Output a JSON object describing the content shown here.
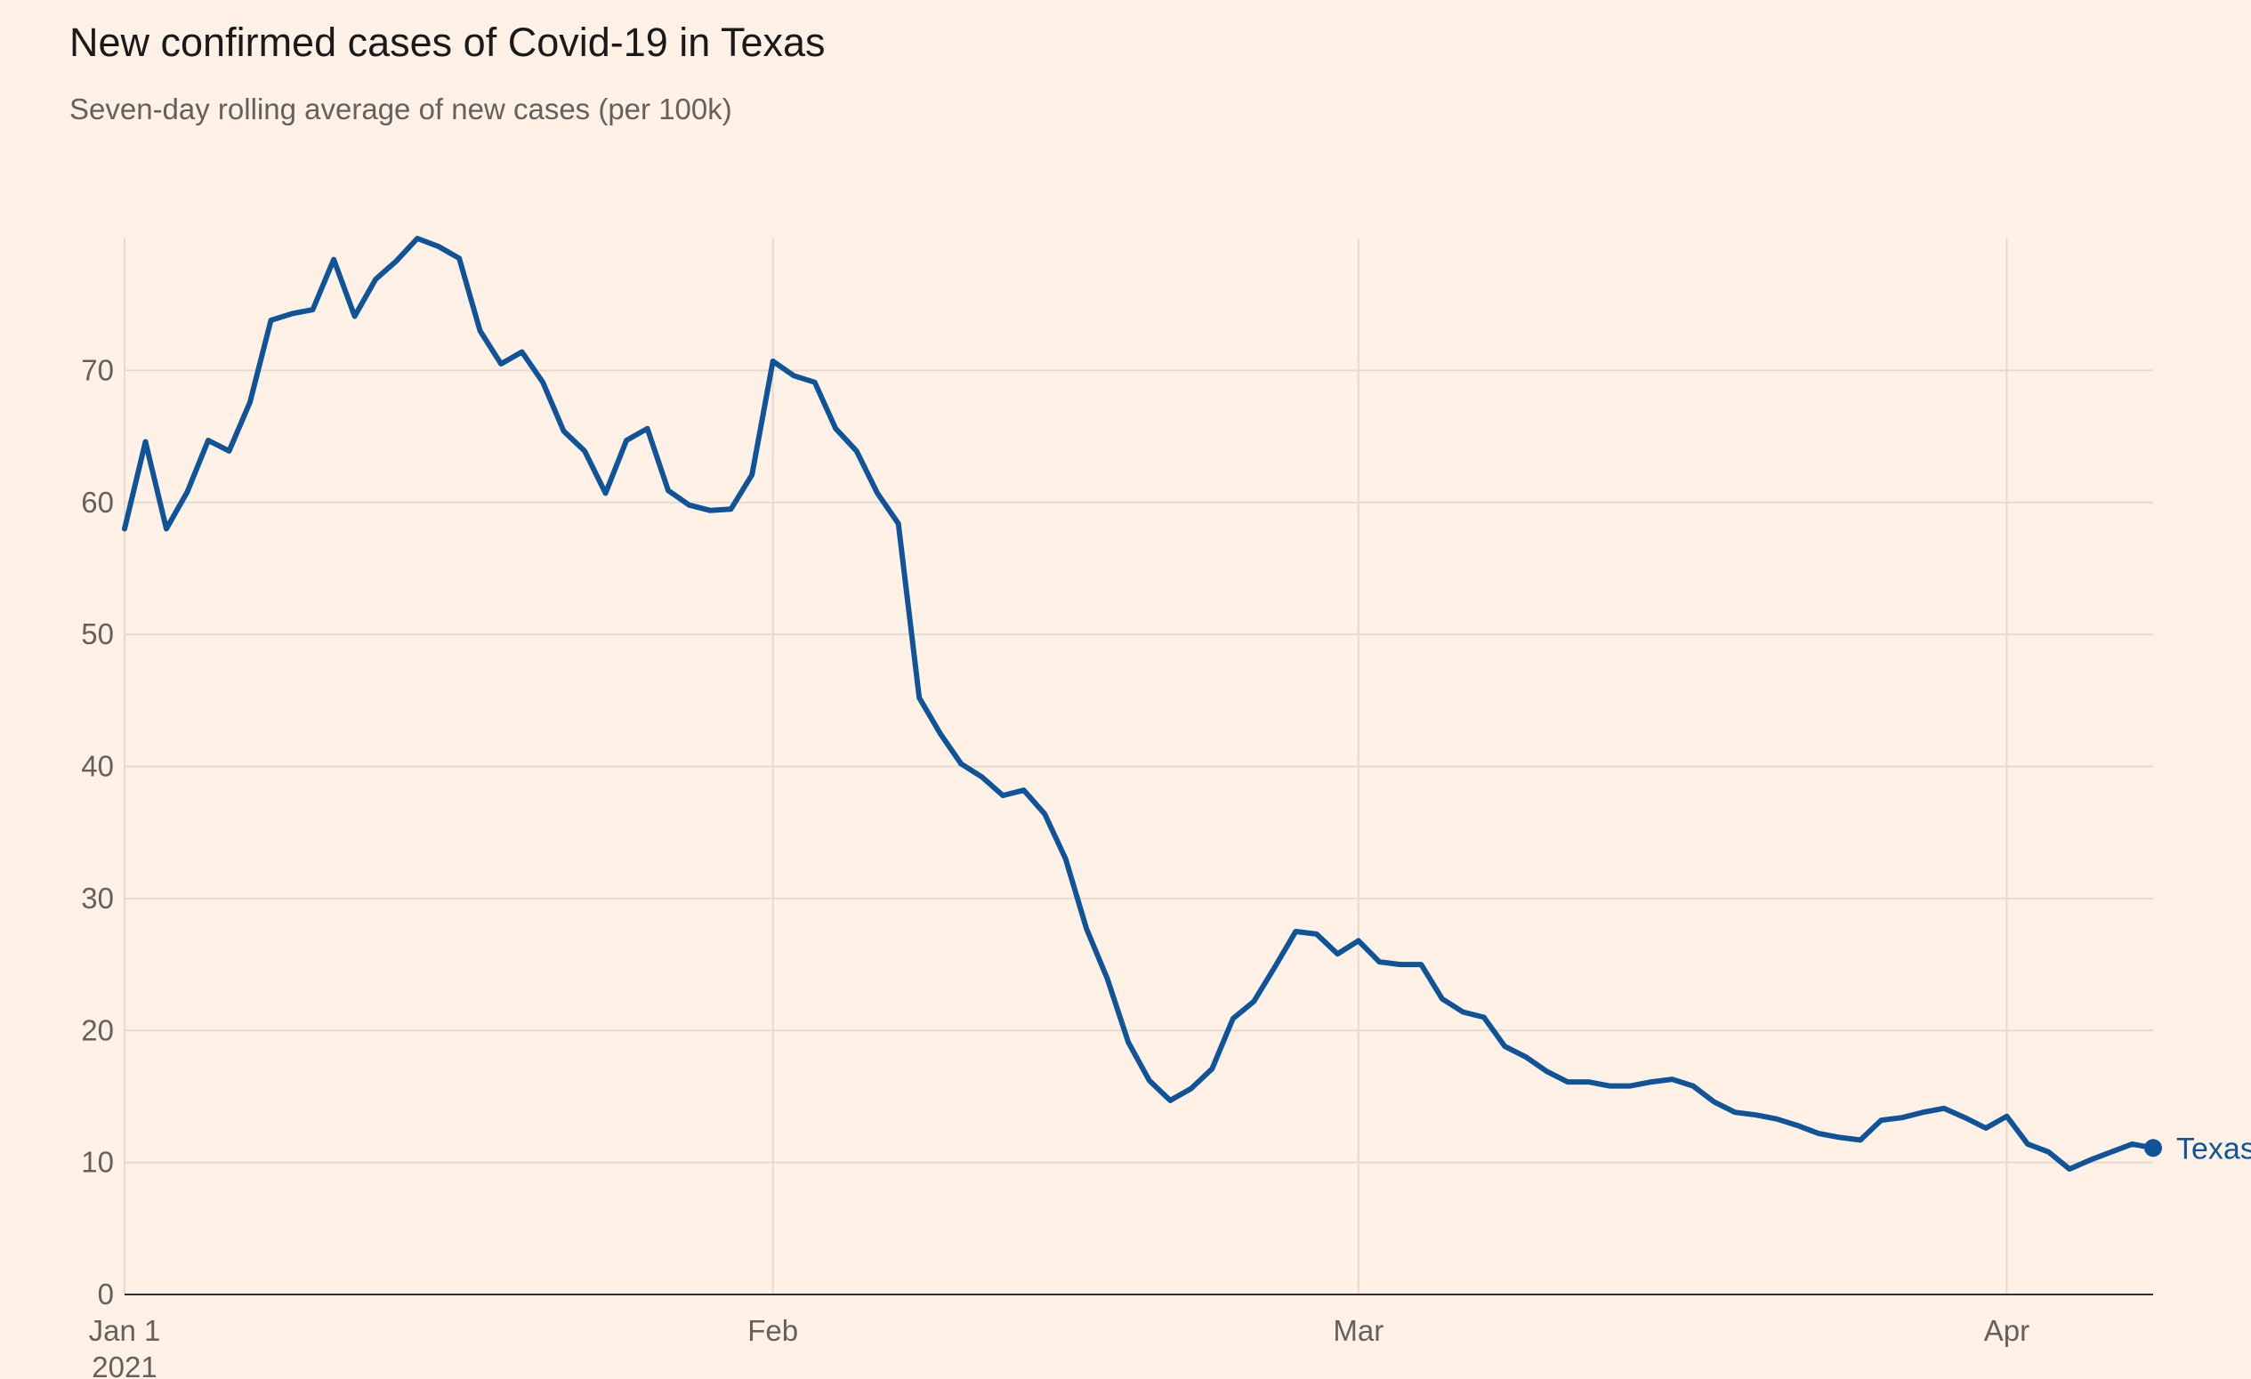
{
  "chart_data": {
    "type": "line",
    "title": "New confirmed cases of Covid-19 in Texas",
    "subtitle": "Seven-day rolling average of new cases (per 100k)",
    "xlabel": "",
    "ylabel": "",
    "ylim": [
      0,
      80
    ],
    "yticks": [
      0,
      10,
      20,
      30,
      40,
      50,
      60,
      70
    ],
    "x_start": "2021-01-01",
    "x_end": "2021-04-08",
    "xticks": [
      {
        "date": "2021-01-01",
        "label": "Jan 1",
        "sublabel": "2021"
      },
      {
        "date": "2021-02-01",
        "label": "Feb",
        "sublabel": ""
      },
      {
        "date": "2021-03-01",
        "label": "Mar",
        "sublabel": ""
      },
      {
        "date": "2021-04-01",
        "label": "Apr",
        "sublabel": ""
      }
    ],
    "grid": true,
    "series": [
      {
        "name": "Texas",
        "color": "#0f5499",
        "x": [
          "2021-01-01",
          "2021-01-02",
          "2021-01-03",
          "2021-01-04",
          "2021-01-05",
          "2021-01-06",
          "2021-01-07",
          "2021-01-08",
          "2021-01-09",
          "2021-01-10",
          "2021-01-11",
          "2021-01-12",
          "2021-01-13",
          "2021-01-14",
          "2021-01-15",
          "2021-01-16",
          "2021-01-17",
          "2021-01-18",
          "2021-01-19",
          "2021-01-20",
          "2021-01-21",
          "2021-01-22",
          "2021-01-23",
          "2021-01-24",
          "2021-01-25",
          "2021-01-26",
          "2021-01-27",
          "2021-01-28",
          "2021-01-29",
          "2021-01-30",
          "2021-01-31",
          "2021-02-01",
          "2021-02-02",
          "2021-02-03",
          "2021-02-04",
          "2021-02-05",
          "2021-02-06",
          "2021-02-07",
          "2021-02-08",
          "2021-02-09",
          "2021-02-10",
          "2021-02-11",
          "2021-02-12",
          "2021-02-13",
          "2021-02-14",
          "2021-02-15",
          "2021-02-16",
          "2021-02-17",
          "2021-02-18",
          "2021-02-19",
          "2021-02-20",
          "2021-02-21",
          "2021-02-22",
          "2021-02-23",
          "2021-02-24",
          "2021-02-25",
          "2021-02-26",
          "2021-02-27",
          "2021-02-28",
          "2021-03-01",
          "2021-03-02",
          "2021-03-03",
          "2021-03-04",
          "2021-03-05",
          "2021-03-06",
          "2021-03-07",
          "2021-03-08",
          "2021-03-09",
          "2021-03-10",
          "2021-03-11",
          "2021-03-12",
          "2021-03-13",
          "2021-03-14",
          "2021-03-15",
          "2021-03-16",
          "2021-03-17",
          "2021-03-18",
          "2021-03-19",
          "2021-03-20",
          "2021-03-21",
          "2021-03-22",
          "2021-03-23",
          "2021-03-24",
          "2021-03-25",
          "2021-03-26",
          "2021-03-27",
          "2021-03-28",
          "2021-03-29",
          "2021-03-30",
          "2021-03-31",
          "2021-04-01",
          "2021-04-02",
          "2021-04-03",
          "2021-04-04",
          "2021-04-05",
          "2021-04-06",
          "2021-04-07",
          "2021-04-08"
        ],
        "values": [
          58.0,
          64.6,
          58.0,
          60.8,
          64.7,
          63.9,
          67.6,
          73.8,
          74.3,
          74.6,
          78.4,
          74.1,
          76.9,
          78.3,
          80.0,
          79.4,
          78.5,
          73.0,
          70.5,
          71.4,
          69.1,
          65.4,
          63.9,
          60.7,
          64.7,
          65.6,
          60.9,
          59.8,
          59.4,
          59.5,
          62.1,
          70.7,
          69.6,
          69.1,
          65.6,
          63.9,
          60.7,
          58.4,
          45.2,
          42.5,
          40.2,
          39.2,
          37.8,
          38.2,
          36.4,
          33.0,
          27.7,
          23.9,
          19.1,
          16.2,
          14.7,
          15.6,
          17.1,
          20.9,
          22.2,
          24.8,
          27.5,
          27.3,
          25.8,
          26.8,
          25.2,
          25.0,
          25.0,
          22.4,
          21.4,
          21.0,
          18.8,
          18.0,
          16.9,
          16.1,
          16.1,
          15.8,
          15.8,
          16.1,
          16.3,
          15.8,
          14.6,
          13.8,
          13.6,
          13.3,
          12.8,
          12.2,
          11.9,
          11.7,
          13.2,
          13.4,
          13.8,
          14.1,
          13.4,
          12.6,
          13.5,
          11.4,
          10.8,
          9.5,
          10.2,
          10.8,
          11.4,
          11.1
        ]
      }
    ]
  }
}
